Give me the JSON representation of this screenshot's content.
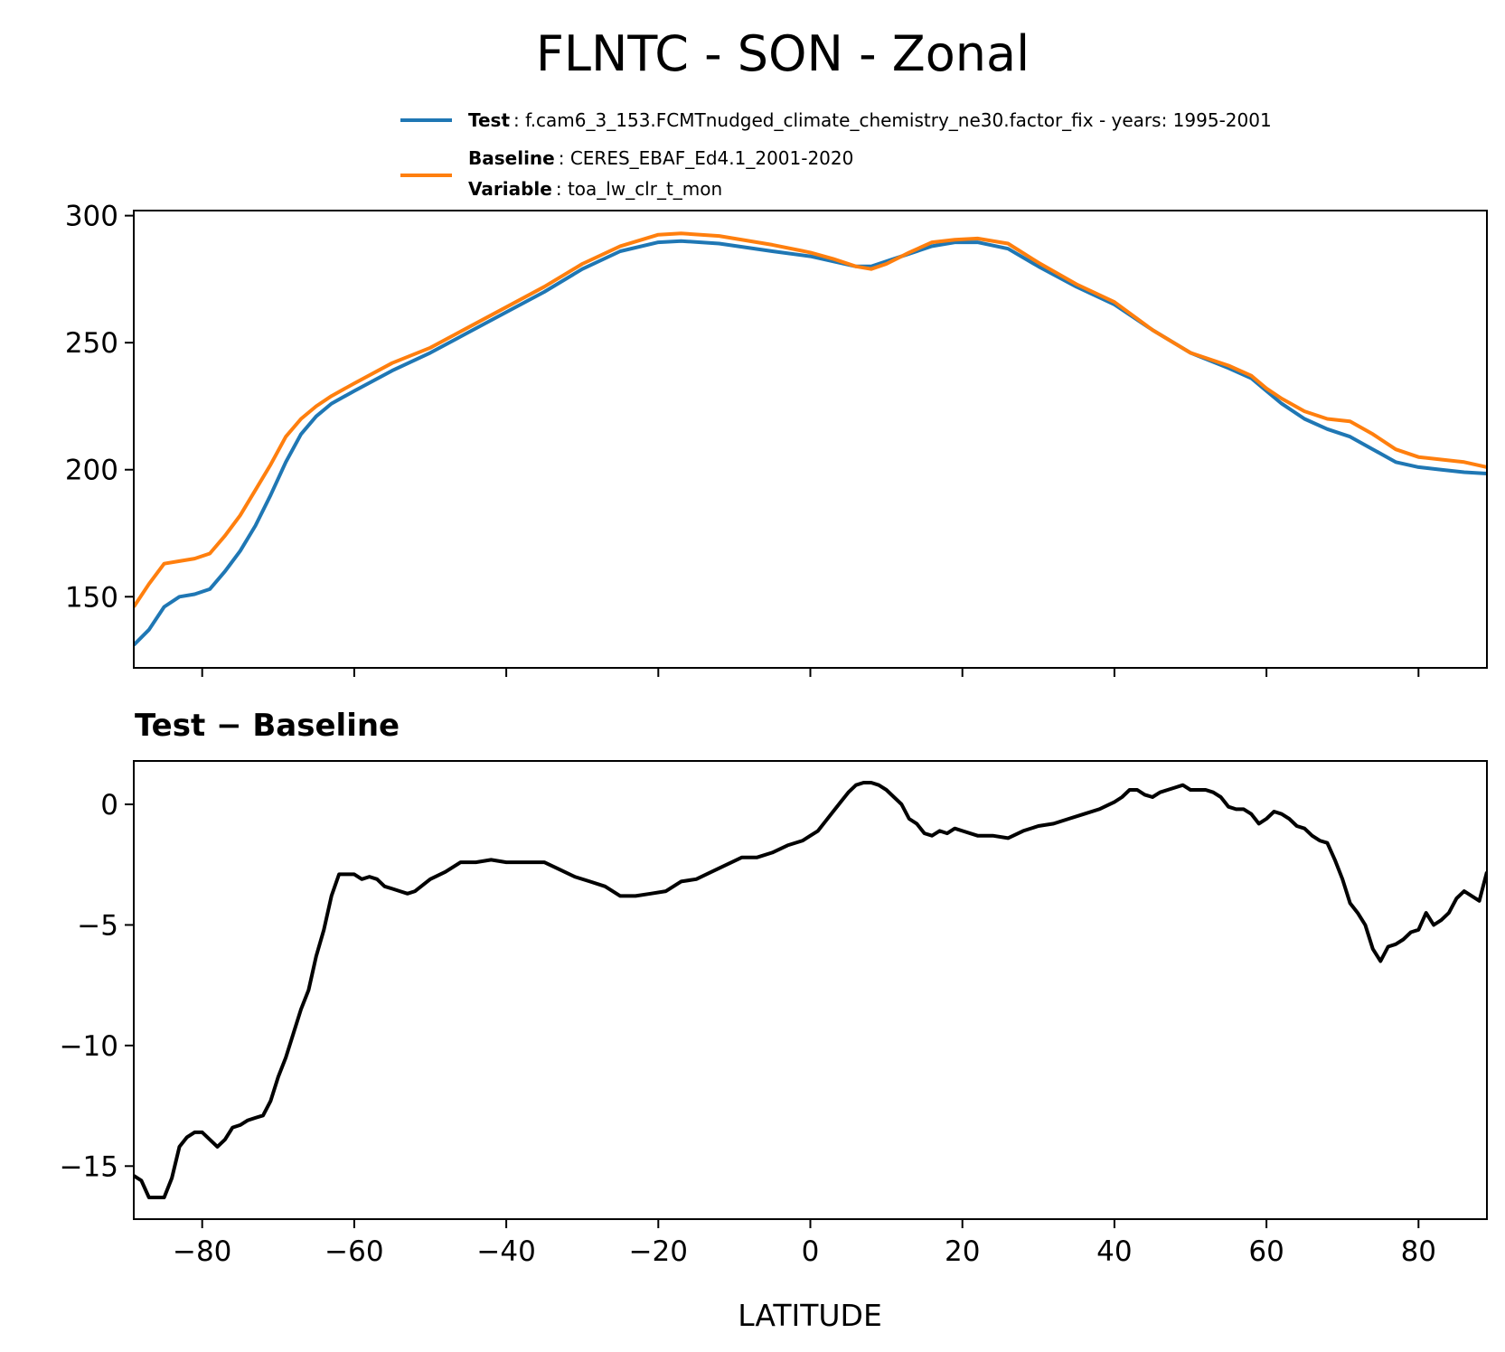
{
  "title": "FLNTC - SON - Zonal",
  "legend": {
    "test_label": "Test",
    "test_value": ": f.cam6_3_153.FCMTnudged_climate_chemistry_ne30.factor_fix - years: 1995-2001",
    "baseline_label": "Baseline",
    "baseline_value": ": CERES_EBAF_Ed4.1_2001-2020",
    "variable_label": "Variable",
    "variable_value": ": toa_lw_clr_t_mon"
  },
  "colors": {
    "test": "#1f77b4",
    "baseline": "#ff7f0e",
    "diff": "#000000"
  },
  "chart_data": [
    {
      "type": "line",
      "title": "",
      "xlabel": "",
      "ylabel": "",
      "xlim": [
        -89,
        89
      ],
      "ylim": [
        122,
        302
      ],
      "yticks": [
        150,
        200,
        250,
        300
      ],
      "xticks": [
        -80,
        -60,
        -40,
        -20,
        0,
        20,
        40,
        60,
        80
      ],
      "x": [
        -89,
        -87,
        -85,
        -83,
        -81,
        -79,
        -77,
        -75,
        -73,
        -71,
        -69,
        -67,
        -65,
        -63,
        -60,
        -55,
        -50,
        -45,
        -40,
        -35,
        -30,
        -25,
        -20,
        -17,
        -12,
        -5,
        0,
        3,
        6,
        8,
        10,
        13,
        16,
        19,
        22,
        26,
        30,
        35,
        40,
        45,
        50,
        55,
        58,
        60,
        62,
        65,
        68,
        71,
        74,
        77,
        80,
        83,
        86,
        89
      ],
      "series": [
        {
          "name": "Test",
          "values": [
            131,
            137,
            146,
            150,
            151,
            153,
            160,
            168,
            178,
            190,
            203,
            214,
            221,
            226,
            231,
            239,
            246,
            254,
            262,
            270,
            279,
            286,
            289.5,
            290,
            289,
            286,
            284,
            282,
            280,
            280,
            282,
            285,
            288,
            289.5,
            289.5,
            287,
            280,
            272,
            265,
            255,
            246,
            240,
            236,
            231,
            226,
            220,
            216,
            213,
            208,
            203,
            201,
            200,
            199,
            198.5
          ]
        },
        {
          "name": "Baseline",
          "values": [
            146,
            155,
            163,
            164,
            165,
            167,
            174,
            182,
            192,
            202,
            213,
            220,
            225,
            229,
            234,
            242,
            248,
            256,
            264,
            272,
            281,
            288,
            292.5,
            293,
            292,
            288.5,
            285.5,
            283,
            280,
            279,
            281,
            285.5,
            289.5,
            290.5,
            291,
            289,
            281.5,
            273,
            266,
            255,
            246,
            241,
            237,
            232,
            228,
            223,
            220,
            219,
            214,
            208,
            205,
            204,
            203,
            201
          ]
        }
      ]
    },
    {
      "type": "line",
      "title": "Test − Baseline",
      "xlabel": "LATITUDE",
      "ylabel": "",
      "xlim": [
        -89,
        89
      ],
      "ylim": [
        -17.2,
        1.8
      ],
      "yticks": [
        0,
        -5,
        -10,
        -15
      ],
      "xticks": [
        -80,
        -60,
        -40,
        -20,
        0,
        20,
        40,
        60,
        80
      ],
      "x": [
        -89,
        -88,
        -87,
        -86,
        -85,
        -84,
        -83,
        -82,
        -81,
        -80,
        -79,
        -78,
        -77,
        -76,
        -75,
        -74,
        -73,
        -72,
        -71,
        -70,
        -69,
        -68,
        -67,
        -66,
        -65,
        -64,
        -63,
        -62,
        -61,
        -60,
        -59,
        -58,
        -57,
        -56,
        -55,
        -54,
        -53,
        -52,
        -50,
        -48,
        -46,
        -44,
        -42,
        -40,
        -38,
        -35,
        -33,
        -31,
        -29,
        -27,
        -25,
        -23,
        -21,
        -19,
        -17,
        -15,
        -13,
        -11,
        -9,
        -7,
        -5,
        -3,
        -1,
        0,
        1,
        2,
        3,
        4,
        5,
        6,
        7,
        8,
        9,
        10,
        11,
        12,
        13,
        14,
        15,
        16,
        17,
        18,
        19,
        20,
        22,
        24,
        26,
        28,
        30,
        32,
        34,
        36,
        38,
        40,
        41,
        42,
        43,
        44,
        45,
        46,
        47,
        48,
        49,
        50,
        52,
        53,
        54,
        55,
        56,
        57,
        58,
        59,
        60,
        61,
        62,
        63,
        64,
        65,
        66,
        67,
        68,
        69,
        70,
        71,
        72,
        73,
        74,
        75,
        76,
        77,
        78,
        79,
        80,
        81,
        82,
        83,
        84,
        85,
        86,
        87,
        88,
        89
      ],
      "series": [
        {
          "name": "",
          "values": [
            -15.4,
            -15.6,
            -16.3,
            -16.3,
            -16.3,
            -15.5,
            -14.2,
            -13.8,
            -13.6,
            -13.6,
            -13.9,
            -14.2,
            -13.9,
            -13.4,
            -13.3,
            -13.1,
            -13.0,
            -12.9,
            -12.3,
            -11.3,
            -10.5,
            -9.5,
            -8.5,
            -7.7,
            -6.3,
            -5.2,
            -3.8,
            -2.9,
            -2.9,
            -2.9,
            -3.1,
            -3.0,
            -3.1,
            -3.4,
            -3.5,
            -3.6,
            -3.7,
            -3.6,
            -3.1,
            -2.8,
            -2.4,
            -2.4,
            -2.3,
            -2.4,
            -2.4,
            -2.4,
            -2.7,
            -3.0,
            -3.2,
            -3.4,
            -3.8,
            -3.8,
            -3.7,
            -3.6,
            -3.2,
            -3.1,
            -2.8,
            -2.5,
            -2.2,
            -2.2,
            -2.0,
            -1.7,
            -1.5,
            -1.3,
            -1.1,
            -0.7,
            -0.3,
            0.1,
            0.5,
            0.8,
            0.9,
            0.9,
            0.8,
            0.6,
            0.3,
            0.0,
            -0.6,
            -0.8,
            -1.2,
            -1.3,
            -1.1,
            -1.2,
            -1.0,
            -1.1,
            -1.3,
            -1.3,
            -1.4,
            -1.1,
            -0.9,
            -0.8,
            -0.6,
            -0.4,
            -0.2,
            0.1,
            0.3,
            0.6,
            0.6,
            0.4,
            0.3,
            0.5,
            0.6,
            0.7,
            0.8,
            0.6,
            0.6,
            0.5,
            0.3,
            -0.1,
            -0.2,
            -0.2,
            -0.4,
            -0.8,
            -0.6,
            -0.3,
            -0.4,
            -0.6,
            -0.9,
            -1.0,
            -1.3,
            -1.5,
            -1.6,
            -2.3,
            -3.1,
            -4.1,
            -4.5,
            -5.0,
            -6.0,
            -6.5,
            -5.9,
            -5.8,
            -5.6,
            -5.3,
            -5.2,
            -4.5,
            -5.0,
            -4.8,
            -4.5,
            -3.9,
            -3.6,
            -3.8,
            -4.0,
            -2.8
          ]
        }
      ]
    }
  ]
}
